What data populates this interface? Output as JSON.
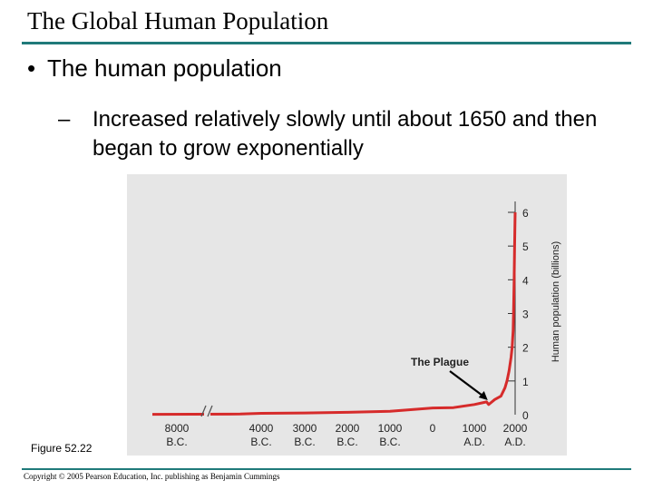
{
  "slide": {
    "title": "The Global Human Population",
    "bullet": "The human population",
    "sub_dash": "–",
    "sub_bullet": "Increased relatively slowly until about 1650 and then began to grow exponentially",
    "figure_label": "Figure 52.22",
    "copyright": "Copyright © 2005 Pearson Education, Inc. publishing as Benjamin Cummings"
  },
  "colors": {
    "rule": "#1f7a7a",
    "plot_background": "#e6e6e6",
    "series": "#d62b2b",
    "annotation_arrow": "#000000"
  },
  "chart_data": {
    "type": "line",
    "title": "",
    "xlabel": "",
    "ylabel": "Human population (billions)",
    "ylabel_position": "right",
    "ylim": [
      0,
      6.5
    ],
    "y_ticks": [
      "0",
      "1",
      "2",
      "3",
      "4",
      "5",
      "6"
    ],
    "y_tick_values": [
      0,
      1,
      2,
      3,
      4,
      5,
      6
    ],
    "x_axis_break_after": "8000 B.C.",
    "x_ticks": [
      {
        "line1": "8000",
        "line2": "B.C.",
        "year": -8000
      },
      {
        "line1": "4000",
        "line2": "B.C.",
        "year": -4000
      },
      {
        "line1": "3000",
        "line2": "B.C.",
        "year": -3000
      },
      {
        "line1": "2000",
        "line2": "B.C.",
        "year": -2000
      },
      {
        "line1": "1000",
        "line2": "B.C.",
        "year": -1000
      },
      {
        "line1": "0",
        "line2": "",
        "year": 0
      },
      {
        "line1": "1000",
        "line2": "A.D.",
        "year": 1000
      },
      {
        "line1": "2000",
        "line2": "A.D.",
        "year": 2000
      }
    ],
    "series": [
      {
        "points": [
          {
            "year": -8000,
            "value": 0.01
          },
          {
            "year": -5000,
            "value": 0.02
          },
          {
            "year": -4000,
            "value": 0.04
          },
          {
            "year": -3000,
            "value": 0.05
          },
          {
            "year": -2000,
            "value": 0.07
          },
          {
            "year": -1000,
            "value": 0.1
          },
          {
            "year": 0,
            "value": 0.2
          },
          {
            "year": 500,
            "value": 0.21
          },
          {
            "year": 1000,
            "value": 0.3
          },
          {
            "year": 1300,
            "value": 0.38
          },
          {
            "year": 1350,
            "value": 0.3
          },
          {
            "year": 1400,
            "value": 0.35
          },
          {
            "year": 1500,
            "value": 0.45
          },
          {
            "year": 1650,
            "value": 0.55
          },
          {
            "year": 1750,
            "value": 0.8
          },
          {
            "year": 1800,
            "value": 1.0
          },
          {
            "year": 1850,
            "value": 1.3
          },
          {
            "year": 1900,
            "value": 1.7
          },
          {
            "year": 1927,
            "value": 2.0
          },
          {
            "year": 1950,
            "value": 2.5
          },
          {
            "year": 1960,
            "value": 3.0
          },
          {
            "year": 1975,
            "value": 4.0
          },
          {
            "year": 1987,
            "value": 5.0
          },
          {
            "year": 1999,
            "value": 6.0
          }
        ]
      }
    ],
    "annotations": [
      {
        "text": "The Plague",
        "year": 1350,
        "value": 0.35
      }
    ]
  }
}
